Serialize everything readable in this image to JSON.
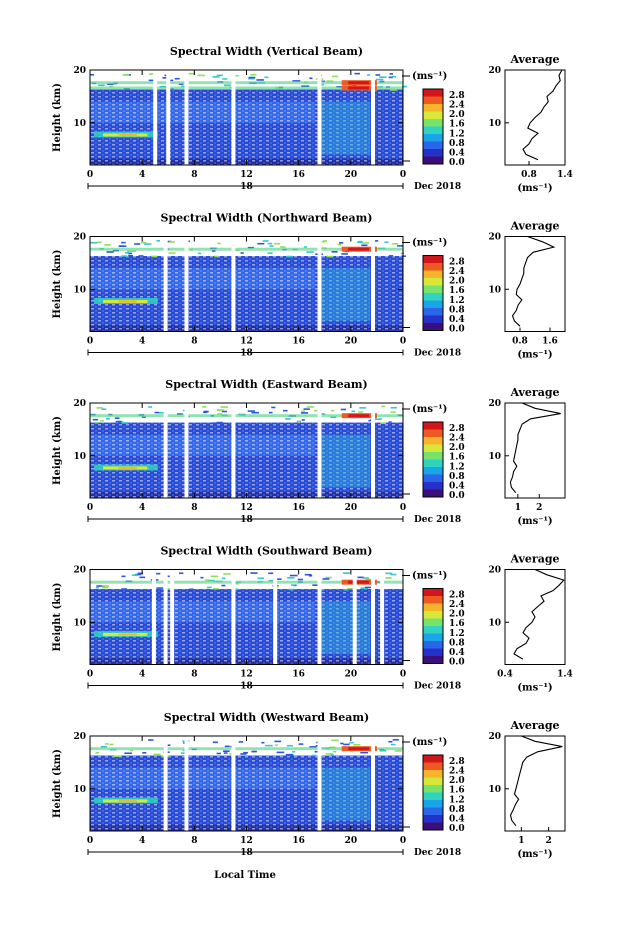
{
  "figure": {
    "xlabel": "Local Time",
    "date_label": "Dec 2018",
    "day_label": "18",
    "time_ticks": [
      "0",
      "4",
      "8",
      "12",
      "16",
      "20",
      "0"
    ]
  },
  "colorbar": {
    "unit": "(ms⁻¹)",
    "tick_labels": [
      "2.8",
      "2.4",
      "2.0",
      "1.6",
      "1.2",
      "0.8",
      "0.4",
      "0.0"
    ],
    "colors": [
      "#3b0f7a",
      "#2631c9",
      "#2a66ea",
      "#1aa5e8",
      "#2fd3c0",
      "#77e36a",
      "#d7e83a",
      "#f6b42a",
      "#ee5a22",
      "#d3161b"
    ]
  },
  "chart_data": [
    {
      "type": "heatmap",
      "title": "Spectral Width (Vertical Beam)",
      "xlabel": "",
      "ylabel": "Height (km)",
      "xlim": [
        0,
        24
      ],
      "ylim": [
        2,
        20
      ],
      "y_ticks": [
        10,
        20
      ],
      "clim": [
        0.0,
        2.8
      ],
      "data_gaps_hours": [
        5.0,
        6.0,
        7.4,
        11.0,
        17.6,
        21.7
      ],
      "notable_high_width_heights_km": [
        7.6,
        16.5,
        17.5
      ],
      "average_profile": {
        "title": "Average",
        "xlabel": "(ms⁻¹)",
        "xlim": [
          0.4,
          1.4
        ],
        "x_tick_labels": [
          "0.8",
          "1.4"
        ],
        "y_ticks": [
          10,
          20
        ],
        "height_km": [
          3,
          4,
          5,
          6,
          7,
          8,
          9,
          10,
          11,
          12,
          13,
          14,
          15,
          16,
          17,
          18,
          19,
          20
        ],
        "width_ms": [
          0.95,
          0.75,
          0.7,
          0.8,
          0.85,
          0.95,
          0.78,
          0.82,
          0.9,
          1.0,
          1.05,
          1.12,
          1.1,
          1.2,
          1.25,
          1.32,
          1.3,
          1.35
        ]
      }
    },
    {
      "type": "heatmap",
      "title": "Spectral Width (Northward Beam)",
      "xlabel": "",
      "ylabel": "Height (km)",
      "xlim": [
        0,
        24
      ],
      "ylim": [
        2,
        20
      ],
      "y_ticks": [
        10,
        20
      ],
      "clim": [
        0.0,
        2.8
      ],
      "data_gaps_hours": [
        5.8,
        7.4,
        11.0,
        17.6,
        21.7
      ],
      "notable_high_width_heights_km": [
        7.6,
        17.5
      ],
      "average_profile": {
        "title": "Average",
        "xlabel": "(ms⁻¹)",
        "xlim": [
          0.4,
          2.0
        ],
        "x_tick_labels": [
          "0.8",
          "1.6"
        ],
        "y_ticks": [
          10,
          20
        ],
        "height_km": [
          3,
          4,
          5,
          6,
          7,
          8,
          9,
          10,
          11,
          12,
          13,
          14,
          15,
          16,
          17,
          18,
          19,
          20
        ],
        "width_ms": [
          0.8,
          0.65,
          0.6,
          0.7,
          0.75,
          0.85,
          0.7,
          0.72,
          0.8,
          0.85,
          0.9,
          0.9,
          0.95,
          1.0,
          1.15,
          1.7,
          1.4,
          1.0
        ]
      }
    },
    {
      "type": "heatmap",
      "title": "Spectral Width (Eastward Beam)",
      "xlabel": "",
      "ylabel": "Height (km)",
      "xlim": [
        0,
        24
      ],
      "ylim": [
        2,
        20
      ],
      "y_ticks": [
        10,
        20
      ],
      "clim": [
        0.0,
        2.8
      ],
      "data_gaps_hours": [
        5.8,
        7.4,
        11.0,
        17.6,
        21.7
      ],
      "notable_high_width_heights_km": [
        7.6,
        17.5
      ],
      "average_profile": {
        "title": "Average",
        "xlabel": "(ms⁻¹)",
        "xlim": [
          0.4,
          3.2
        ],
        "x_tick_labels": [
          "1",
          "2"
        ],
        "y_ticks": [
          10,
          20
        ],
        "height_km": [
          3,
          4,
          5,
          6,
          7,
          8,
          9,
          10,
          11,
          12,
          13,
          14,
          15,
          16,
          17,
          18,
          19,
          20
        ],
        "width_ms": [
          0.9,
          0.7,
          0.65,
          0.75,
          0.8,
          0.95,
          0.8,
          0.85,
          0.9,
          0.95,
          1.0,
          1.0,
          1.1,
          1.2,
          1.6,
          3.0,
          1.8,
          1.2
        ]
      }
    },
    {
      "type": "heatmap",
      "title": "Spectral Width (Southward Beam)",
      "xlabel": "",
      "ylabel": "Height (km)",
      "xlim": [
        0,
        24
      ],
      "ylim": [
        2,
        20
      ],
      "y_ticks": [
        10,
        20
      ],
      "clim": [
        0.0,
        2.8
      ],
      "data_gaps_hours": [
        4.9,
        5.8,
        6.3,
        11.0,
        14.2,
        17.6,
        20.3,
        21.7,
        22.4
      ],
      "notable_high_width_heights_km": [
        7.6,
        17.5
      ],
      "average_profile": {
        "title": "Average",
        "xlabel": "(ms⁻¹)",
        "xlim": [
          0.4,
          1.4
        ],
        "x_tick_labels": [
          "0.4",
          "1.4"
        ],
        "y_ticks": [
          10,
          20
        ],
        "height_km": [
          3,
          4,
          5,
          6,
          7,
          8,
          9,
          10,
          11,
          12,
          13,
          14,
          15,
          16,
          17,
          18,
          19,
          20
        ],
        "width_ms": [
          0.7,
          0.55,
          0.6,
          0.75,
          0.8,
          0.7,
          0.75,
          0.85,
          0.9,
          0.85,
          0.95,
          1.05,
          1.0,
          1.2,
          1.3,
          1.38,
          1.1,
          0.9
        ]
      }
    },
    {
      "type": "heatmap",
      "title": "Spectral Width (Westward Beam)",
      "xlabel": "Local Time",
      "ylabel": "Height (km)",
      "xlim": [
        0,
        24
      ],
      "ylim": [
        2,
        20
      ],
      "y_ticks": [
        10,
        20
      ],
      "clim": [
        0.0,
        2.8
      ],
      "data_gaps_hours": [
        5.8,
        7.4,
        11.0,
        17.6,
        21.7
      ],
      "notable_high_width_heights_km": [
        7.6,
        17.5
      ],
      "average_profile": {
        "title": "Average",
        "xlabel": "(ms⁻¹)",
        "xlim": [
          0.4,
          2.6
        ],
        "x_tick_labels": [
          "1",
          "2"
        ],
        "y_ticks": [
          10,
          20
        ],
        "height_km": [
          3,
          4,
          5,
          6,
          7,
          8,
          9,
          10,
          11,
          12,
          13,
          14,
          15,
          16,
          17,
          18,
          19,
          20
        ],
        "width_ms": [
          0.8,
          0.65,
          0.6,
          0.7,
          0.78,
          0.9,
          0.75,
          0.8,
          0.85,
          0.9,
          0.95,
          1.0,
          1.05,
          1.2,
          1.6,
          2.5,
          1.5,
          1.0
        ]
      }
    }
  ]
}
